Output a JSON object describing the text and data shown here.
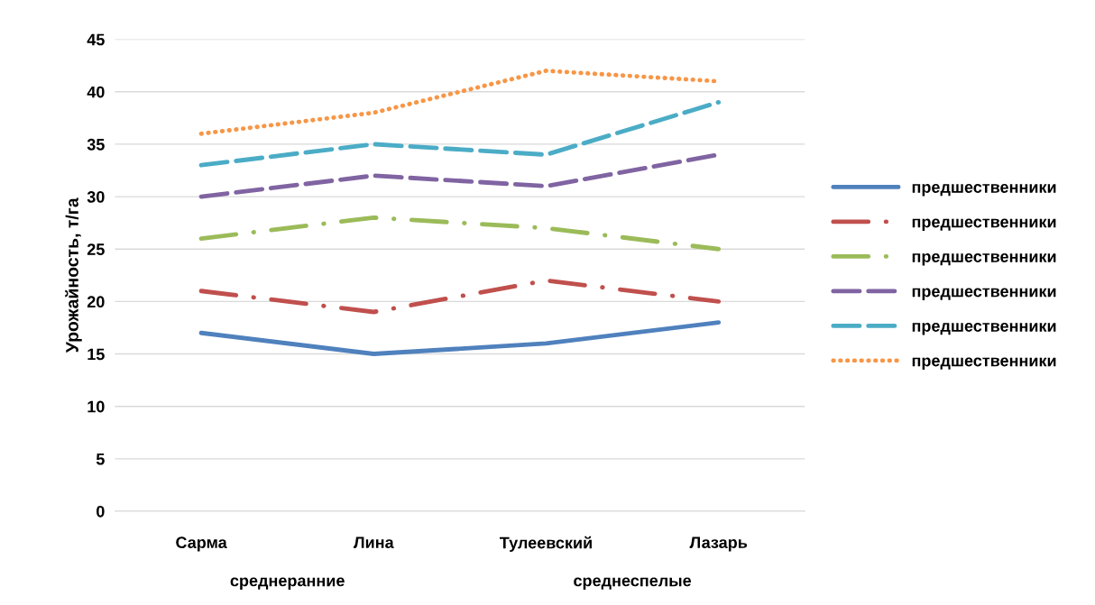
{
  "chart_data": {
    "type": "line",
    "ylabel": "Урожайность, т/га",
    "categories": [
      "Сарма",
      "Лина",
      "Тулеевский",
      "Лазарь"
    ],
    "annotations": [
      "среднеранние",
      "среднеспелые"
    ],
    "series": [
      {
        "name": "предшественники",
        "color": "#4f81bd",
        "line_style": "solid",
        "values": [
          17,
          15,
          16,
          18
        ]
      },
      {
        "name": "предшественники",
        "color": "#c0504d",
        "line_style": "dashdot",
        "values": [
          21,
          19,
          22,
          20
        ]
      },
      {
        "name": "предшественники",
        "color": "#9bbb59",
        "line_style": "dashdot",
        "values": [
          26,
          28,
          27,
          25
        ]
      },
      {
        "name": "предшественники",
        "color": "#8064a2",
        "line_style": "dashed",
        "values": [
          30,
          32,
          31,
          34
        ]
      },
      {
        "name": "предшественники",
        "color": "#4bacc6",
        "line_style": "dashed",
        "values": [
          33,
          35,
          34,
          39
        ]
      },
      {
        "name": "предшественники",
        "color": "#f79646",
        "line_style": "dotted",
        "values": [
          36,
          38,
          42,
          41
        ]
      }
    ],
    "ylim": [
      0,
      45
    ],
    "yticks": [
      0,
      5,
      10,
      15,
      20,
      25,
      30,
      35,
      40,
      45
    ],
    "grid": "y",
    "legend": "right",
    "marker": "none"
  }
}
